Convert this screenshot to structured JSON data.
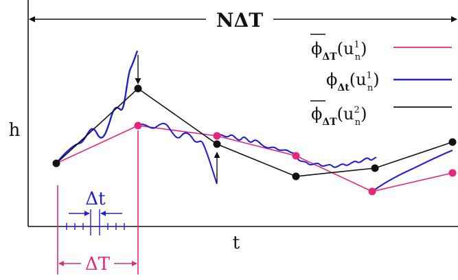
{
  "title": "NΔT",
  "axes": {
    "y_label": "h",
    "x_label": "t"
  },
  "legend": [
    {
      "id": "coarse_u1",
      "symbol": "ϕ",
      "overbar": true,
      "sub": "ΔT",
      "arg_base": "u",
      "arg_sup": "1",
      "arg_sub": "n",
      "color": "#e5267a"
    },
    {
      "id": "fine_u1",
      "symbol": "ϕ",
      "overbar": false,
      "sub": "Δt",
      "arg_base": "u",
      "arg_sup": "1",
      "arg_sub": "n",
      "color": "#1f1fd6"
    },
    {
      "id": "coarse_u2",
      "symbol": "ϕ",
      "overbar": true,
      "sub": "ΔT",
      "arg_base": "u",
      "arg_sup": "2",
      "arg_sub": "n",
      "color": "#111111"
    }
  ],
  "annotations": {
    "fine_step": "Δt",
    "coarse_step": "ΔT"
  },
  "colors": {
    "pink": "#e5267a",
    "blue": "#1f1fd6",
    "black": "#111111"
  }
}
